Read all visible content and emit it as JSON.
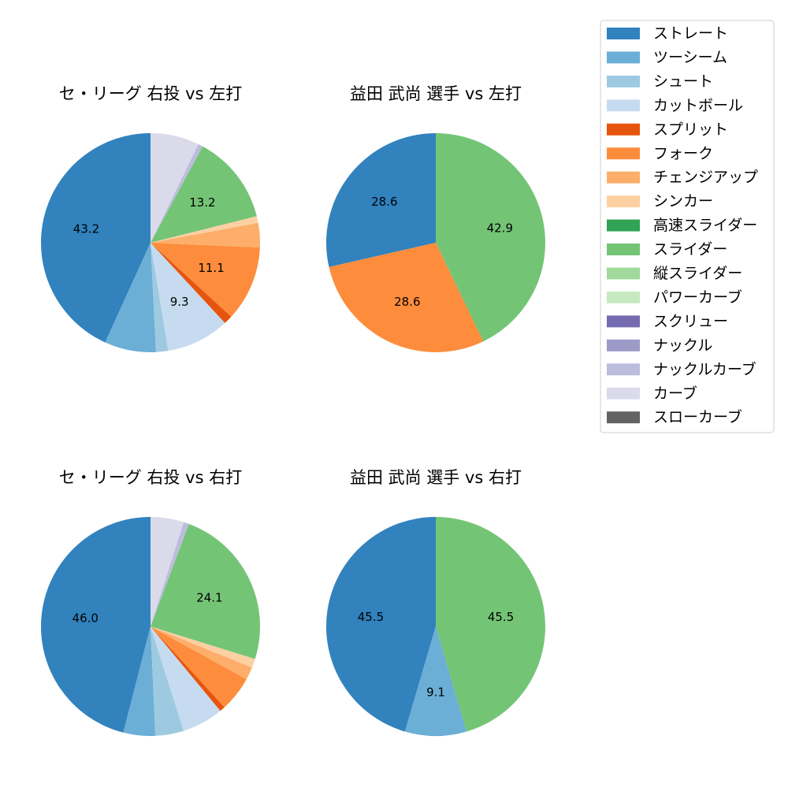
{
  "legend": {
    "items": [
      {
        "label": "ストレート",
        "color": "#3182bd"
      },
      {
        "label": "ツーシーム",
        "color": "#6baed6"
      },
      {
        "label": "シュート",
        "color": "#9ecae1"
      },
      {
        "label": "カットボール",
        "color": "#c6dbef"
      },
      {
        "label": "スプリット",
        "color": "#e6550d"
      },
      {
        "label": "フォーク",
        "color": "#fd8d3c"
      },
      {
        "label": "チェンジアップ",
        "color": "#fdae6b"
      },
      {
        "label": "シンカー",
        "color": "#fdd0a2"
      },
      {
        "label": "高速スライダー",
        "color": "#31a354"
      },
      {
        "label": "スライダー",
        "color": "#74c476"
      },
      {
        "label": "縦スライダー",
        "color": "#a1d99b"
      },
      {
        "label": "パワーカーブ",
        "color": "#c7e9c0"
      },
      {
        "label": "スクリュー",
        "color": "#756bb1"
      },
      {
        "label": "ナックル",
        "color": "#9e9ac8"
      },
      {
        "label": "ナックルカーブ",
        "color": "#bcbddc"
      },
      {
        "label": "カーブ",
        "color": "#dadaeb"
      },
      {
        "label": "スローカーブ",
        "color": "#636363"
      }
    ]
  },
  "chart_data": [
    {
      "type": "pie",
      "title": "セ・リーグ 右投 vs 左打",
      "slices": [
        {
          "label": "ストレート",
          "value": 43.2,
          "shown": "43.2"
        },
        {
          "label": "ツーシーム",
          "value": 7.6
        },
        {
          "label": "シュート",
          "value": 1.8
        },
        {
          "label": "カットボール",
          "value": 9.3,
          "shown": "9.3"
        },
        {
          "label": "スプリット",
          "value": 1.3
        },
        {
          "label": "フォーク",
          "value": 11.1,
          "shown": "11.1"
        },
        {
          "label": "チェンジアップ",
          "value": 3.6
        },
        {
          "label": "シンカー",
          "value": 1.0
        },
        {
          "label": "スライダー",
          "value": 13.2,
          "shown": "13.2"
        },
        {
          "label": "ナックルカーブ",
          "value": 0.7
        },
        {
          "label": "カーブ",
          "value": 7.2
        }
      ]
    },
    {
      "type": "pie",
      "title": "益田 武尚 選手 vs 左打",
      "slices": [
        {
          "label": "ストレート",
          "value": 28.6,
          "shown": "28.6"
        },
        {
          "label": "フォーク",
          "value": 28.6,
          "shown": "28.6"
        },
        {
          "label": "スライダー",
          "value": 42.9,
          "shown": "42.9"
        }
      ]
    },
    {
      "type": "pie",
      "title": "セ・リーグ 右投 vs 右打",
      "slices": [
        {
          "label": "ストレート",
          "value": 46.0,
          "shown": "46.0"
        },
        {
          "label": "ツーシーム",
          "value": 4.7
        },
        {
          "label": "シュート",
          "value": 4.2
        },
        {
          "label": "カットボール",
          "value": 6.1
        },
        {
          "label": "スプリット",
          "value": 0.8
        },
        {
          "label": "フォーク",
          "value": 5.2
        },
        {
          "label": "チェンジアップ",
          "value": 1.9
        },
        {
          "label": "シンカー",
          "value": 1.3
        },
        {
          "label": "スライダー",
          "value": 24.1,
          "shown": "24.1"
        },
        {
          "label": "ナックルカーブ",
          "value": 0.8
        },
        {
          "label": "カーブ",
          "value": 4.9
        }
      ]
    },
    {
      "type": "pie",
      "title": "益田 武尚 選手 vs 右打",
      "slices": [
        {
          "label": "ストレート",
          "value": 45.5,
          "shown": "45.5"
        },
        {
          "label": "ツーシーム",
          "value": 9.1,
          "shown": "9.1"
        },
        {
          "label": "スライダー",
          "value": 45.5,
          "shown": "45.5"
        }
      ]
    }
  ]
}
